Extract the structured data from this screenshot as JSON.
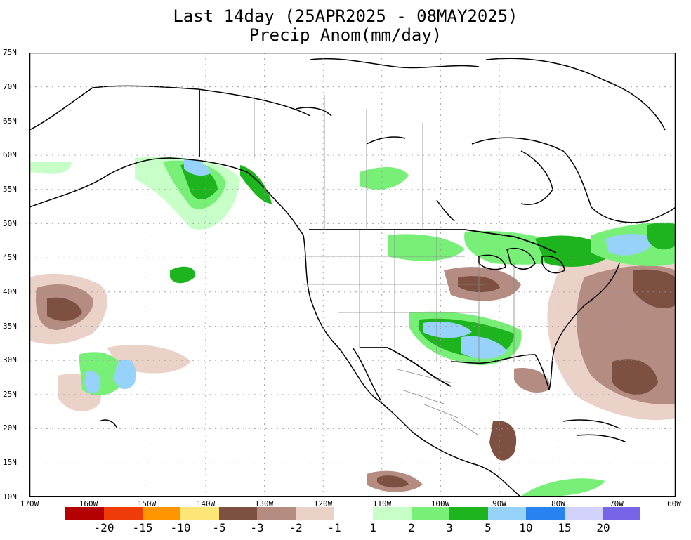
{
  "title": {
    "line1": "Last 14day (25APR2025 - 08MAY2025)",
    "line2": "Precip Anom(mm/day)"
  },
  "map": {
    "region": "North America / North Pacific",
    "lat_labels": [
      "75N",
      "70N",
      "65N",
      "60N",
      "55N",
      "50N",
      "45N",
      "40N",
      "35N",
      "30N",
      "25N",
      "20N",
      "15N",
      "10N"
    ],
    "lon_labels": [
      "170W",
      "160W",
      "150W",
      "140W",
      "130W",
      "120W",
      "110W",
      "100W",
      "90W",
      "80W",
      "70W",
      "60W"
    ],
    "lat_range": [
      10,
      75
    ],
    "lon_range": [
      -170,
      -60
    ],
    "grid": true
  },
  "colorbar": {
    "colors": [
      "#b40000",
      "#f03c0a",
      "#ff9600",
      "#ffe678",
      "#7d5041",
      "#b48c82",
      "#ebd2c8",
      "#ffffff",
      "#c8ffc8",
      "#78f078",
      "#1eb41e",
      "#96d2fa",
      "#2882f0",
      "#d2d2fa",
      "#7864e6"
    ],
    "labels": [
      "-20",
      "-15",
      "-10",
      "-5",
      "-3",
      "-2",
      "-1",
      "1",
      "2",
      "3",
      "5",
      "10",
      "15",
      "20"
    ]
  }
}
